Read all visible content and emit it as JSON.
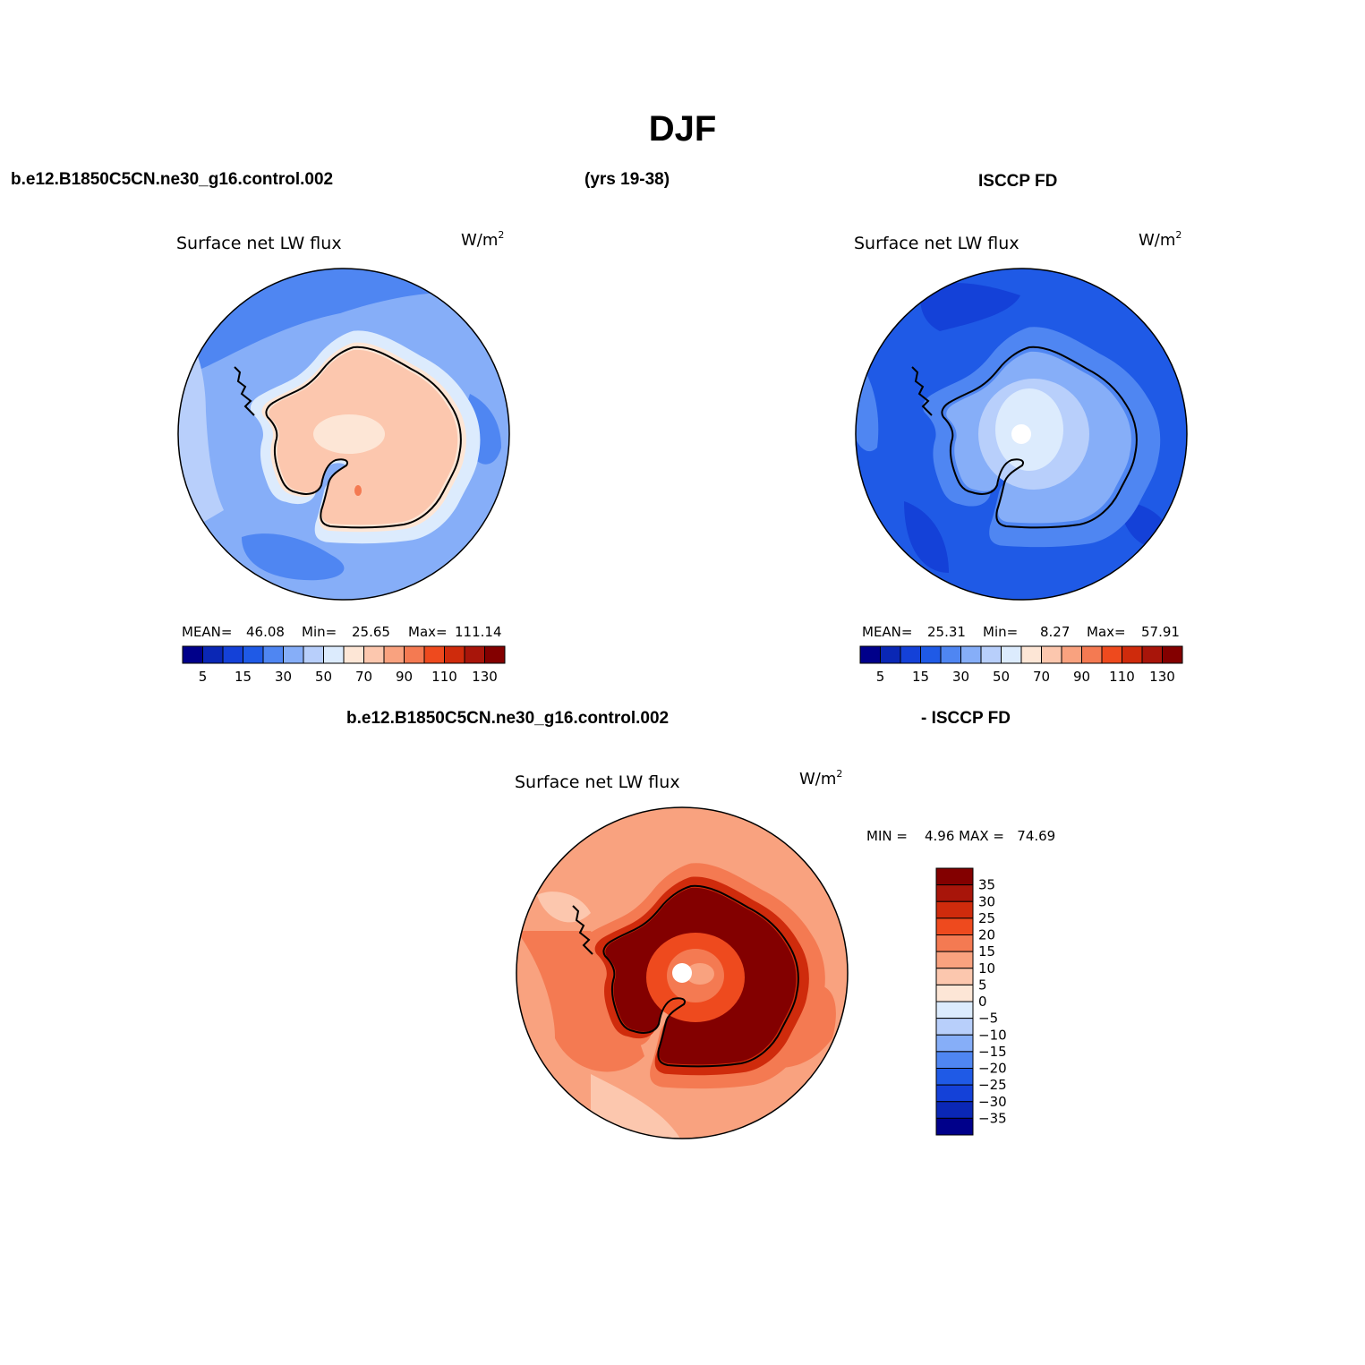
{
  "page": {
    "title": "DJF",
    "top_left_header": "b.e12.B1850C5CN.ne30_g16.control.002",
    "top_center_header": "(yrs 19-38)",
    "top_right_header": "ISCCP FD",
    "diff_header_left": "b.e12.B1850C5CN.ne30_g16.control.002",
    "diff_header_right": "- ISCCP FD"
  },
  "panels": [
    {
      "id": "model",
      "variable": "Surface net LW flux",
      "units": "W/m",
      "units_exp": "2",
      "mean_label": "MEAN=",
      "mean": "46.08",
      "min_label": "Min=",
      "min": "25.65",
      "max_label": "Max=",
      "max": "111.14"
    },
    {
      "id": "obs",
      "variable": "Surface net LW flux",
      "units": "W/m",
      "units_exp": "2",
      "mean_label": "MEAN=",
      "mean": "25.31",
      "min_label": "Min=",
      "min": "8.27",
      "max_label": "Max=",
      "max": "57.91"
    },
    {
      "id": "diff",
      "variable": "Surface net LW flux",
      "units": "W/m",
      "units_exp": "2",
      "minmax_text": "MIN =    4.96 MAX =   74.69"
    }
  ],
  "colorbar_abs": {
    "colors": [
      "#00008a",
      "#0a27b5",
      "#1441d8",
      "#1f5ae6",
      "#4f86f2",
      "#86aef8",
      "#b8cffb",
      "#dcebfd",
      "#fde6d6",
      "#fcc7ae",
      "#f9a27f",
      "#f47a52",
      "#ee4a1e",
      "#cf2b0c",
      "#a8150a",
      "#830000"
    ],
    "labels": [
      "5",
      "15",
      "30",
      "50",
      "70",
      "90",
      "110",
      "130"
    ]
  },
  "colorbar_diff": {
    "colors": [
      "#00008a",
      "#0a27b5",
      "#1441d8",
      "#1f5ae6",
      "#4f86f2",
      "#86aef8",
      "#b8cffb",
      "#dcebfd",
      "#fde6d6",
      "#fcc7ae",
      "#f9a27f",
      "#f47a52",
      "#ee4a1e",
      "#cf2b0c",
      "#a8150a",
      "#830000"
    ],
    "labels": [
      "35",
      "30",
      "25",
      "20",
      "15",
      "10",
      "5",
      "0",
      "−5",
      "−10",
      "−15",
      "−20",
      "−25",
      "−30",
      "−35"
    ]
  }
}
